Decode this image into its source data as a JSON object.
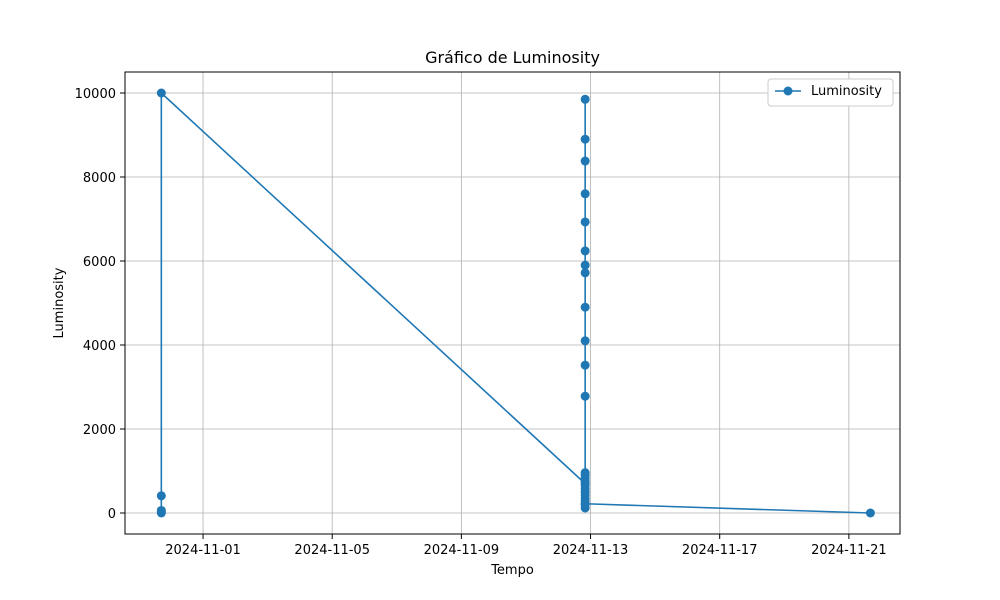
{
  "chart_data": {
    "type": "line",
    "title": "Gráfico de Luminosity",
    "xlabel": "Tempo",
    "ylabel": "Luminosity",
    "x_type": "date",
    "xlim": [
      "2024-10-29T14:00",
      "2024-11-22T14:00"
    ],
    "ylim": [
      -500,
      10500
    ],
    "xticks": [
      "2024-11-01",
      "2024-11-05",
      "2024-11-09",
      "2024-11-13",
      "2024-11-17",
      "2024-11-21"
    ],
    "yticks": [
      0,
      2000,
      4000,
      6000,
      8000,
      10000
    ],
    "grid": true,
    "legend_position": "top-right",
    "marker": "circle",
    "color": "#1f77b4",
    "series": [
      {
        "name": "Luminosity",
        "points": [
          {
            "x": "2024-10-30T17:00",
            "y": 0
          },
          {
            "x": "2024-10-30T17:00",
            "y": 30
          },
          {
            "x": "2024-10-30T17:00",
            "y": 60
          },
          {
            "x": "2024-10-30T17:00",
            "y": 410
          },
          {
            "x": "2024-10-30T17:00",
            "y": 10000
          },
          {
            "x": "2024-11-12T20:00",
            "y": 700
          },
          {
            "x": "2024-11-12T20:00",
            "y": 9850
          },
          {
            "x": "2024-11-12T20:00",
            "y": 120
          },
          {
            "x": "2024-11-12T20:00",
            "y": 8900
          },
          {
            "x": "2024-11-12T20:00",
            "y": 200
          },
          {
            "x": "2024-11-12T20:00",
            "y": 8380
          },
          {
            "x": "2024-11-12T20:00",
            "y": 280
          },
          {
            "x": "2024-11-12T20:00",
            "y": 7600
          },
          {
            "x": "2024-11-12T20:00",
            "y": 350
          },
          {
            "x": "2024-11-12T20:00",
            "y": 6930
          },
          {
            "x": "2024-11-12T20:00",
            "y": 430
          },
          {
            "x": "2024-11-12T20:00",
            "y": 6240
          },
          {
            "x": "2024-11-12T20:00",
            "y": 500
          },
          {
            "x": "2024-11-12T20:00",
            "y": 5900
          },
          {
            "x": "2024-11-12T20:00",
            "y": 580
          },
          {
            "x": "2024-11-12T20:00",
            "y": 5720
          },
          {
            "x": "2024-11-12T20:00",
            "y": 660
          },
          {
            "x": "2024-11-12T20:00",
            "y": 4900
          },
          {
            "x": "2024-11-12T20:00",
            "y": 750
          },
          {
            "x": "2024-11-12T20:00",
            "y": 4100
          },
          {
            "x": "2024-11-12T20:00",
            "y": 830
          },
          {
            "x": "2024-11-12T20:00",
            "y": 3520
          },
          {
            "x": "2024-11-12T20:00",
            "y": 900
          },
          {
            "x": "2024-11-12T20:00",
            "y": 2780
          },
          {
            "x": "2024-11-12T20:00",
            "y": 960
          },
          {
            "x": "2024-11-12T20:00",
            "y": 220
          },
          {
            "x": "2024-11-21T16:00",
            "y": 0
          }
        ]
      }
    ]
  }
}
